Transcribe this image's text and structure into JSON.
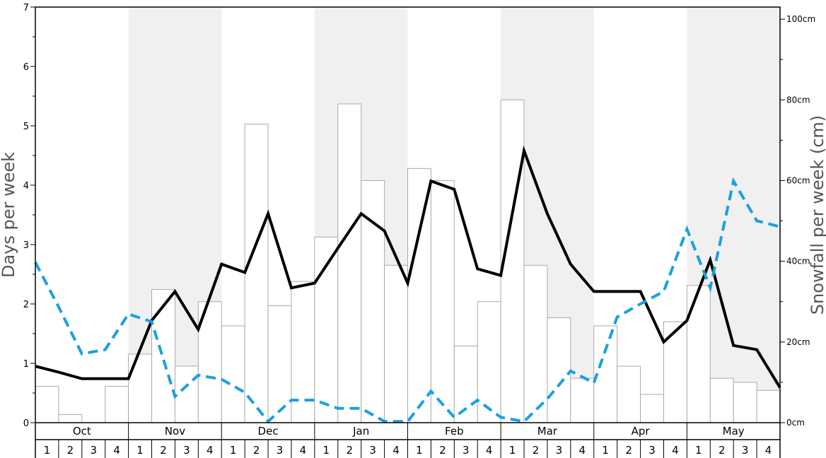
{
  "chart_data": {
    "type": "bar+line",
    "months": [
      "Oct",
      "Nov",
      "Dec",
      "Jan",
      "Feb",
      "Mar",
      "Apr",
      "May"
    ],
    "weeks_per_month": [
      "1",
      "2",
      "3",
      "4"
    ],
    "ylabel_left": "Days per week",
    "ylabel_right": "Snowfall per week (cm)",
    "ylim_left": [
      0,
      7
    ],
    "ylim_right_cm": [
      0,
      103
    ],
    "left_ticks": [
      "0",
      "1",
      "2",
      "3",
      "4",
      "5",
      "6",
      "7"
    ],
    "right_ticks": [
      {
        "value": 0,
        "label": "0cm"
      },
      {
        "value": 20,
        "label": "20cm"
      },
      {
        "value": 40,
        "label": "40cm"
      },
      {
        "value": 60,
        "label": "60cm"
      },
      {
        "value": 80,
        "label": "80cm"
      },
      {
        "value": 100,
        "label": "100cm"
      }
    ],
    "shaded_months": [
      "Nov",
      "Jan",
      "Mar",
      "May"
    ],
    "series": [
      {
        "kind": "bar",
        "axis": "right",
        "values": [
          9,
          2,
          0,
          9,
          17,
          33,
          14,
          30,
          24,
          74,
          29,
          35,
          46,
          79,
          60,
          39,
          63,
          60,
          19,
          30,
          80,
          39,
          26,
          11,
          24,
          14,
          7,
          25,
          34,
          11,
          10,
          8
        ],
        "style": {
          "fill": "#ffffff",
          "stroke": "#aaaaaa"
        }
      },
      {
        "kind": "line",
        "axis": "left",
        "values": [
          0.95,
          0.85,
          0.74,
          0.74,
          0.74,
          1.72,
          2.21,
          1.57,
          2.67,
          2.53,
          3.52,
          2.27,
          2.35,
          2.94,
          3.52,
          3.23,
          2.35,
          4.07,
          3.93,
          2.59,
          2.48,
          4.58,
          3.52,
          2.67,
          2.21,
          2.21,
          2.21,
          1.36,
          1.72,
          2.74,
          1.3,
          1.23,
          0.59
        ],
        "style": {
          "color": "#000000",
          "dash": "solid"
        }
      },
      {
        "kind": "line",
        "axis": "left",
        "values": [
          2.7,
          1.95,
          1.16,
          1.23,
          1.83,
          1.7,
          0.44,
          0.8,
          0.73,
          0.51,
          0.02,
          0.38,
          0.38,
          0.24,
          0.24,
          0.02,
          0.02,
          0.53,
          0.09,
          0.38,
          0.09,
          0.02,
          0.4,
          0.87,
          0.67,
          1.78,
          2.0,
          2.21,
          3.26,
          2.27,
          4.07,
          3.4,
          3.3
        ],
        "style": {
          "color": "#1aa0e0",
          "dash": "dashed"
        }
      }
    ]
  }
}
